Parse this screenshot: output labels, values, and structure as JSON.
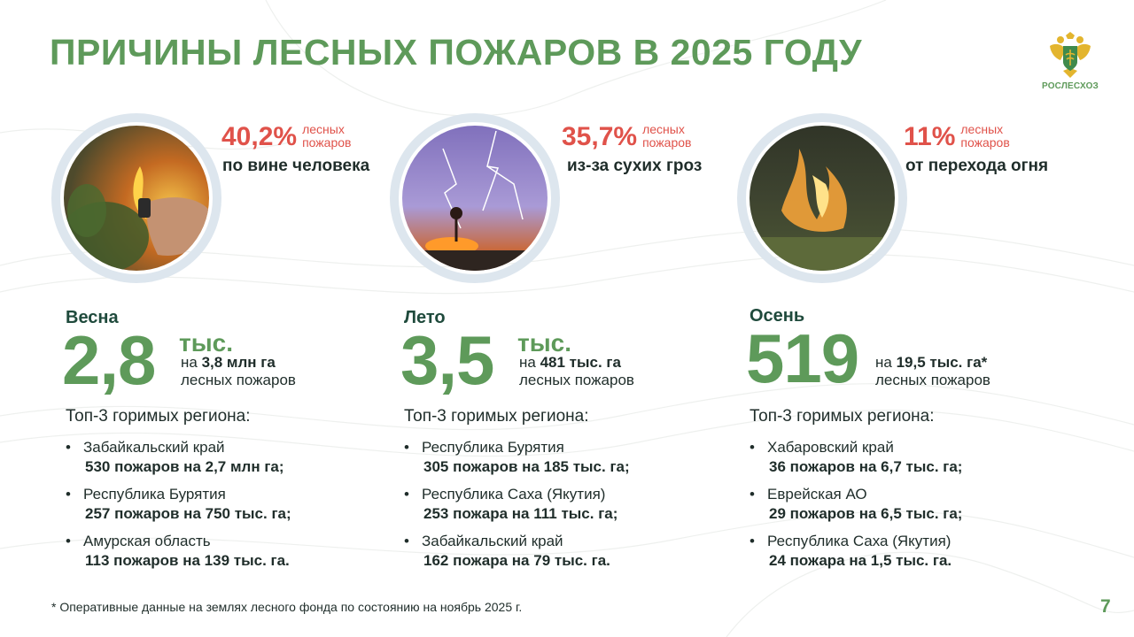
{
  "title": "ПРИЧИНЫ ЛЕСНЫХ ПОЖАРОВ В 2025 ГОДУ",
  "logo": {
    "text": "РОСЛЕСХОЗ",
    "icon": "double-headed-eagle-emblem-icon"
  },
  "colors": {
    "accent_green": "#5e9a5a",
    "accent_red": "#e0524a",
    "ring_track": "#dde6ee"
  },
  "causes": [
    {
      "percent": "40,2%",
      "small_line1": "лесных",
      "small_line2": "пожаров",
      "text": "по вине человека",
      "share": 0.402,
      "photo": "hand-with-lighter-forest-fire-photo"
    },
    {
      "percent": "35,7%",
      "small_line1": "лесных",
      "small_line2": "пожаров",
      "text": "из-за сухих гроз",
      "share": 0.357,
      "photo": "lightning-storm-fire-photo"
    },
    {
      "percent": "11%",
      "small_line1": "лесных",
      "small_line2": "пожаров",
      "text": "от перехода огня",
      "share": 0.11,
      "photo": "grass-fire-photo"
    }
  ],
  "seasons": [
    {
      "name": "Весна",
      "big": "2,8",
      "thousands": "тыс.",
      "area_prefix": "на",
      "area_value": "3,8 млн га",
      "fires_label": "лесных пожаров",
      "top_title": "Топ-3 горимых региона:",
      "regions": [
        {
          "name": "Забайкальский край",
          "stat": "530 пожаров на 2,7 млн га;"
        },
        {
          "name": "Республика Бурятия",
          "stat": "257 пожаров на 750 тыс. га;"
        },
        {
          "name": "Амурская область",
          "stat": "113 пожаров на 139 тыс. га."
        }
      ]
    },
    {
      "name": "Лето",
      "big": "3,5",
      "thousands": "тыс.",
      "area_prefix": "на",
      "area_value": "481 тыс. га",
      "fires_label": "лесных пожаров",
      "top_title": "Топ-3 горимых региона:",
      "regions": [
        {
          "name": "Республика Бурятия",
          "stat": "305 пожаров на 185 тыс. га;"
        },
        {
          "name": "Республика Саха (Якутия)",
          "stat": "253 пожара на 111 тыс. га;"
        },
        {
          "name": "Забайкальский край",
          "stat": "162 пожара на 79 тыс. га."
        }
      ]
    },
    {
      "name": "Осень",
      "big": "519",
      "thousands": "",
      "area_prefix": "на",
      "area_value": "19,5 тыс. га*",
      "fires_label": "лесных пожаров",
      "top_title": "Топ-3 горимых региона:",
      "regions": [
        {
          "name": "Хабаровский край",
          "stat": "36 пожаров на 6,7 тыс. га;"
        },
        {
          "name": "Еврейская АО",
          "stat": "29 пожаров на 6,5 тыс. га;"
        },
        {
          "name": "Республика Саха (Якутия)",
          "stat": "24 пожара на 1,5 тыс. га."
        }
      ]
    }
  ],
  "bullet": "•",
  "footnote": "* Оперативные данные на землях лесного фонда по состоянию на ноябрь 2025 г.",
  "page_number": "7"
}
